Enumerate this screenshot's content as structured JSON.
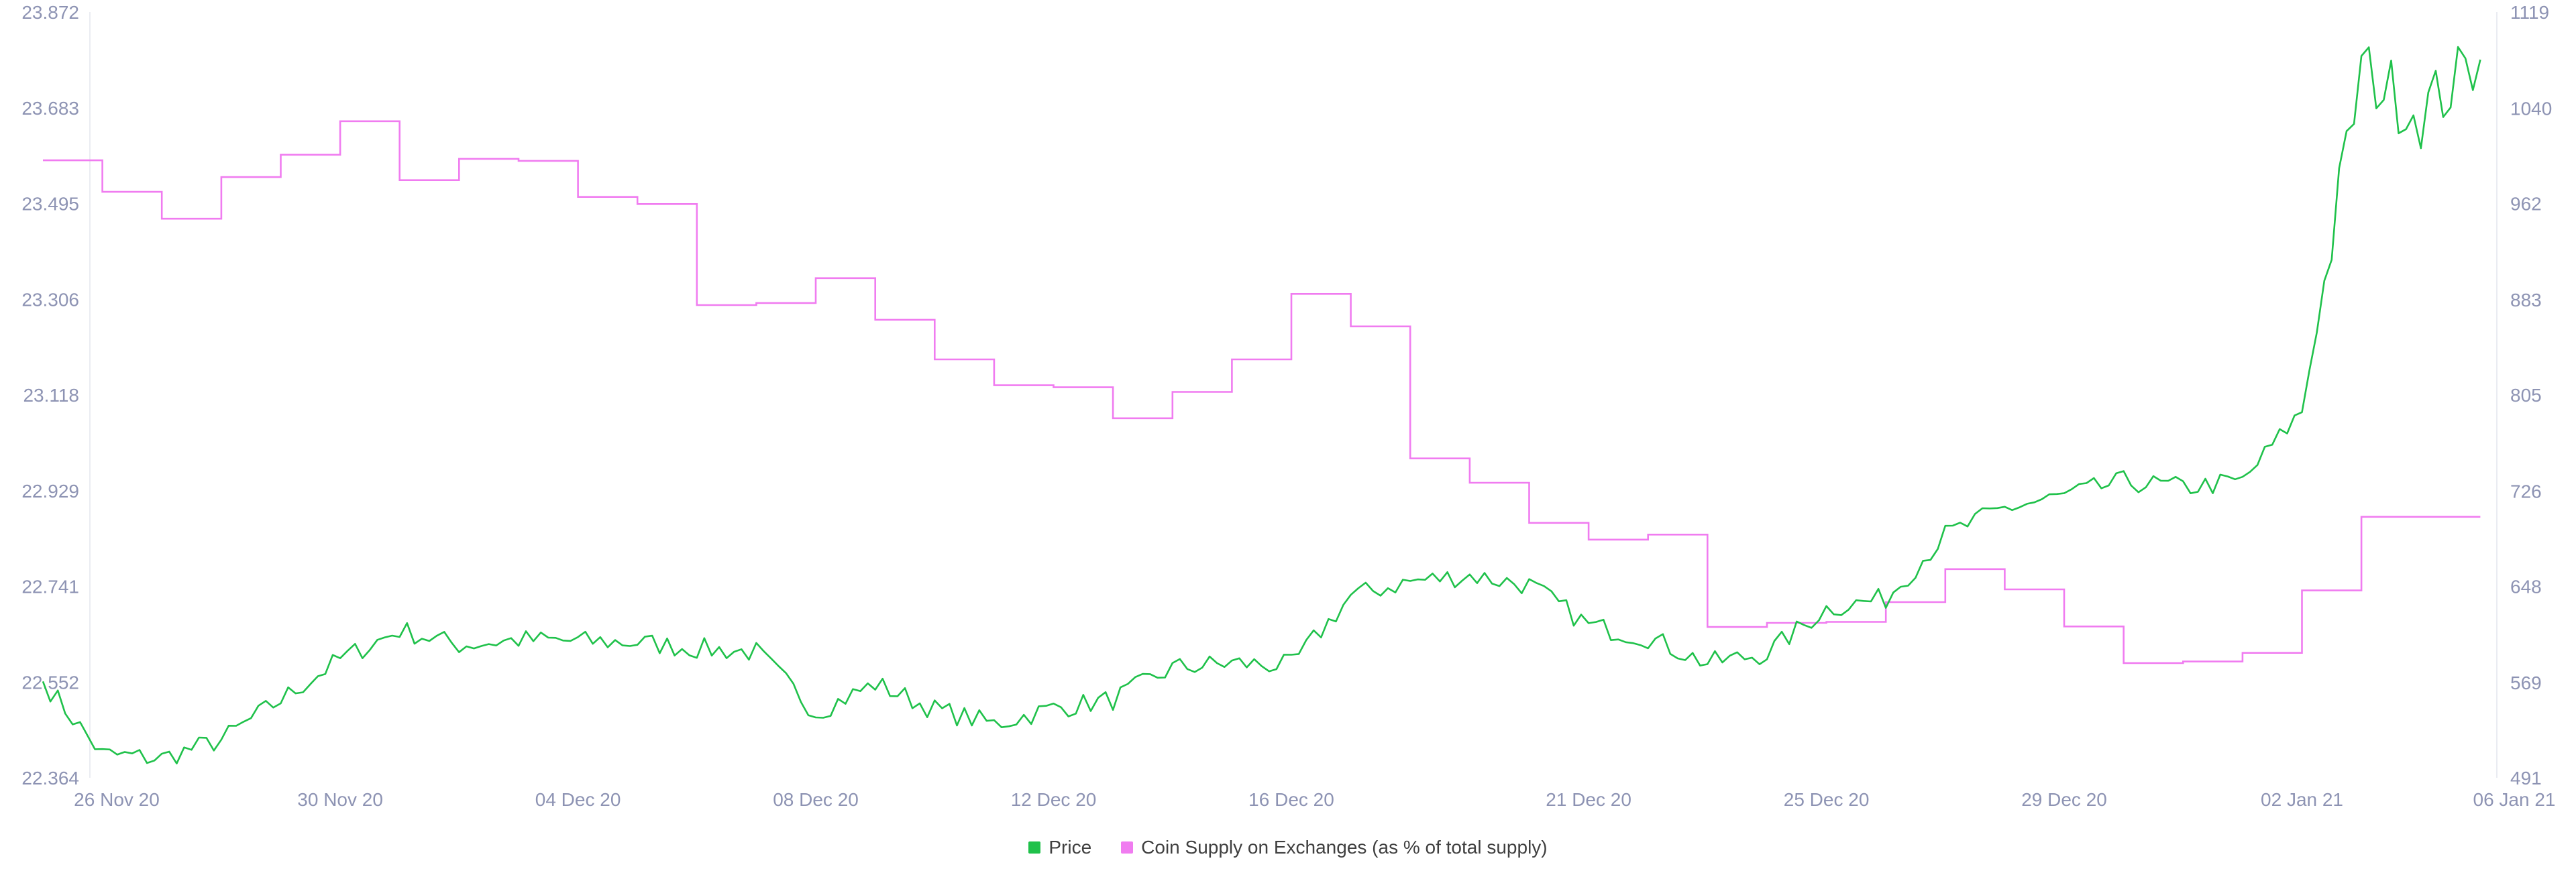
{
  "chart_data": {
    "type": "line",
    "title": "",
    "x_tick_labels": [
      "26 Nov 20",
      "30 Nov 20",
      "04 Dec 20",
      "08 Dec 20",
      "12 Dec 20",
      "16 Dec 20",
      "21 Dec 20",
      "25 Dec 20",
      "29 Dec 20",
      "02 Jan 21",
      "06 Jan 21"
    ],
    "left_axis": {
      "tick_labels": [
        "23.872",
        "23.683",
        "23.495",
        "23.306",
        "23.118",
        "22.929",
        "22.741",
        "22.552",
        "22.364"
      ],
      "ylim": [
        22.364,
        23.872
      ]
    },
    "right_axis": {
      "tick_labels": [
        "1119",
        "1040",
        "962",
        "883",
        "805",
        "726",
        "648",
        "569",
        "491"
      ],
      "ylim": [
        491,
        1119
      ]
    },
    "series": [
      {
        "name": "Price",
        "axis": "right",
        "color": "#1fc14a",
        "x": [
          "2020-11-25",
          "2020-11-26",
          "2020-11-27",
          "2020-11-28",
          "2020-11-29",
          "2020-11-30",
          "2020-12-01",
          "2020-12-02",
          "2020-12-03",
          "2020-12-04",
          "2020-12-05",
          "2020-12-06",
          "2020-12-07",
          "2020-12-08",
          "2020-12-09",
          "2020-12-10",
          "2020-12-11",
          "2020-12-12",
          "2020-12-13",
          "2020-12-14",
          "2020-12-15",
          "2020-12-16",
          "2020-12-17",
          "2020-12-18",
          "2020-12-19",
          "2020-12-20",
          "2020-12-21",
          "2020-12-22",
          "2020-12-23",
          "2020-12-24",
          "2020-12-25",
          "2020-12-26",
          "2020-12-27",
          "2020-12-28",
          "2020-12-29",
          "2020-12-30",
          "2020-12-31",
          "2021-01-01",
          "2021-01-02",
          "2021-01-03",
          "2021-01-04",
          "2021-01-05"
        ],
        "values": [
          570,
          510,
          507,
          522,
          555,
          588,
          612,
          600,
          604,
          603,
          602,
          597,
          594,
          545,
          568,
          547,
          535,
          548,
          555,
          581,
          585,
          583,
          640,
          652,
          657,
          649,
          616,
          606,
          585,
          593,
          630,
          638,
          690,
          712,
          722,
          734,
          729,
          734,
          792,
          1072,
          1036,
          1080
        ]
      },
      {
        "name": "Coin Supply on Exchanges (as % of total supply)",
        "axis": "left",
        "color": "#f07cf0",
        "x": [
          "2020-11-25",
          "2020-11-26",
          "2020-11-27",
          "2020-11-28",
          "2020-11-29",
          "2020-11-30",
          "2020-12-01",
          "2020-12-02",
          "2020-12-03",
          "2020-12-04",
          "2020-12-05",
          "2020-12-06",
          "2020-12-07",
          "2020-12-08",
          "2020-12-09",
          "2020-12-10",
          "2020-12-11",
          "2020-12-12",
          "2020-12-13",
          "2020-12-14",
          "2020-12-15",
          "2020-12-16",
          "2020-12-17",
          "2020-12-18",
          "2020-12-19",
          "2020-12-20",
          "2020-12-21",
          "2020-12-22",
          "2020-12-23",
          "2020-12-24",
          "2020-12-25",
          "2020-12-26",
          "2020-12-27",
          "2020-12-28",
          "2020-12-29",
          "2020-12-30",
          "2020-12-31",
          "2021-01-01",
          "2021-01-02",
          "2021-01-03",
          "2021-01-04"
        ],
        "values": [
          23.58,
          23.518,
          23.465,
          23.547,
          23.591,
          23.657,
          23.541,
          23.583,
          23.579,
          23.508,
          23.494,
          23.295,
          23.299,
          23.348,
          23.266,
          23.188,
          23.137,
          23.133,
          23.072,
          23.124,
          23.188,
          23.317,
          23.253,
          22.993,
          22.945,
          22.866,
          22.833,
          22.843,
          22.661,
          22.669,
          22.671,
          22.71,
          22.775,
          22.735,
          22.662,
          22.59,
          22.593,
          22.61,
          22.733,
          22.878,
          22.878
        ]
      }
    ],
    "grid": "vertical",
    "legend_position": "bottom"
  }
}
